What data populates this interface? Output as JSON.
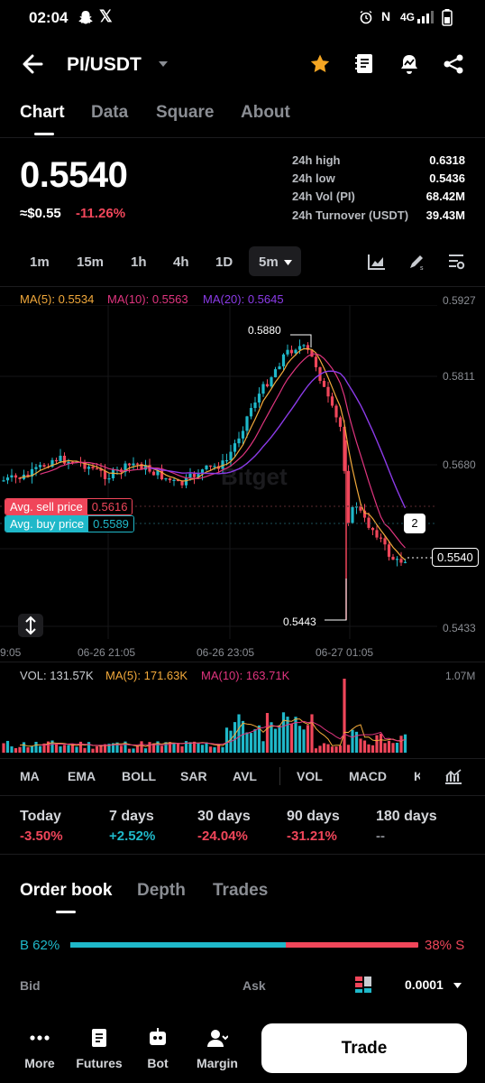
{
  "status_bar": {
    "time": "02:04",
    "network": "4G"
  },
  "header": {
    "pair": "PI/USDT"
  },
  "tabs": [
    "Chart",
    "Data",
    "Square",
    "About"
  ],
  "ticker": {
    "price": "0.5540",
    "usd_value": "≈$0.55",
    "change": "-11.26%",
    "stats": [
      {
        "label": "24h high",
        "value": "0.6318"
      },
      {
        "label": "24h low",
        "value": "0.5436"
      },
      {
        "label": "24h Vol (PI)",
        "value": "68.42M"
      },
      {
        "label": "24h Turnover (USDT)",
        "value": "39.43M"
      }
    ]
  },
  "timeframes": [
    "1m",
    "15m",
    "1h",
    "4h",
    "1D",
    "5m"
  ],
  "chart": {
    "ma5": "MA(5): 0.5534",
    "ma10": "MA(10): 0.5563",
    "ma20": "MA(20): 0.5645",
    "y_ticks": [
      "0.5927",
      "0.5811",
      "0.5680",
      "0.5433"
    ],
    "x_ticks": [
      "9:05",
      "06-26 21:05",
      "06-26 23:05",
      "06-27 01:05"
    ],
    "high_marker": "0.5880",
    "low_marker": "0.5443",
    "current_price": "0.5540",
    "avg_sell_label": "Avg. sell price",
    "avg_sell_value": "0.5616",
    "avg_buy_label": "Avg. buy price",
    "avg_buy_value": "0.5589",
    "order_count": "2",
    "watermark": "Bitget"
  },
  "volume": {
    "vol": "VOL: 131.57K",
    "ma5": "MA(5): 171.63K",
    "ma10": "MA(10): 163.71K",
    "max": "1.07M"
  },
  "indicators": [
    "MA",
    "EMA",
    "BOLL",
    "SAR",
    "AVL",
    "VOL",
    "MACD",
    "K"
  ],
  "performance": [
    {
      "label": "Today",
      "value": "-3.50%"
    },
    {
      "label": "7 days",
      "value": "+2.52%"
    },
    {
      "label": "30 days",
      "value": "-24.04%"
    },
    {
      "label": "90 days",
      "value": "-31.21%"
    },
    {
      "label": "180 days",
      "value": "--"
    }
  ],
  "orderbook": {
    "tabs": [
      "Order book",
      "Depth",
      "Trades"
    ],
    "buy_pct": "B 62%",
    "sell_pct": "38% S",
    "buy_ratio": 0.62,
    "bid_label": "Bid",
    "ask_label": "Ask",
    "precision": "0.0001"
  },
  "bottom_nav": {
    "items": [
      "More",
      "Futures",
      "Bot",
      "Margin"
    ],
    "trade": "Trade"
  },
  "colors": {
    "up": "#1fb8c9",
    "down": "#f0465a",
    "ma5": "#f2a93b",
    "ma10": "#e0357f",
    "ma20": "#8b3be8",
    "star": "#f5a623"
  }
}
